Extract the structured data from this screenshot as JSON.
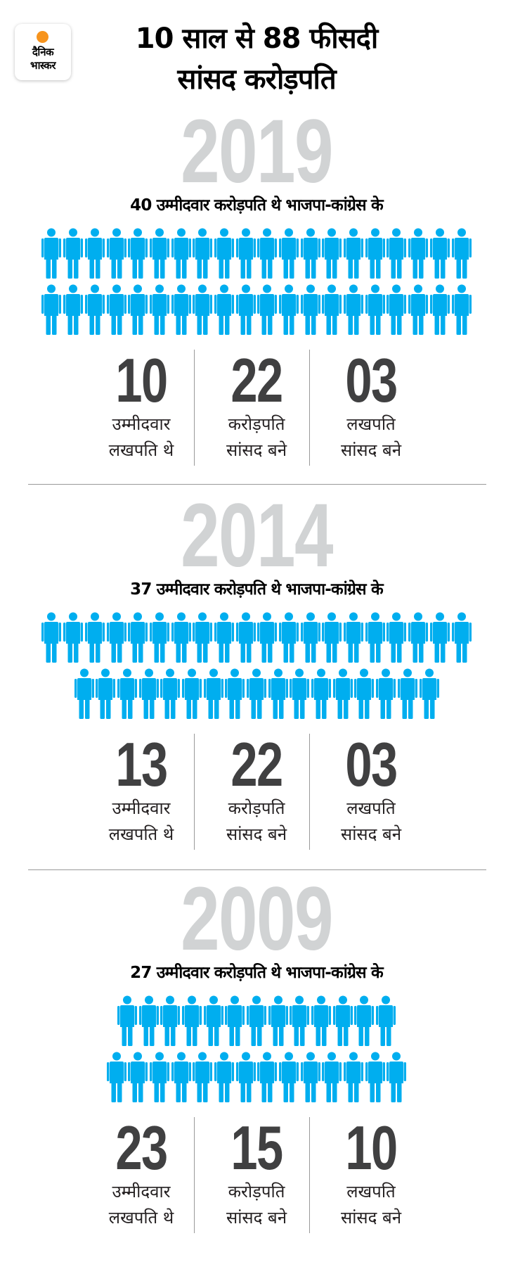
{
  "logo": {
    "line1": "दैनिक",
    "line2": "भास्कर",
    "sun_color": "#f7941d"
  },
  "title": {
    "line1": "10 साल से 88 फीसदी",
    "line2": "सांसद करोड़पति"
  },
  "colors": {
    "figure": "#00aeef",
    "year": "#d1d3d4",
    "number": "#404041"
  },
  "sections": [
    {
      "year": "2019",
      "subtitle": "40 उम्मीदवार करोड़पति थे भाजपा-कांग्रेस के",
      "figure_rows": [
        20,
        20
      ],
      "stats": [
        {
          "value": "10",
          "label1": "उम्मीदवार",
          "label2": "लखपति थे"
        },
        {
          "value": "22",
          "label1": "करोड़पति",
          "label2": "सांसद बने"
        },
        {
          "value": "03",
          "label1": "लखपति",
          "label2": "सांसद बने"
        }
      ]
    },
    {
      "year": "2014",
      "subtitle": "37 उम्मीदवार करोड़पति थे भाजपा-कांग्रेस के",
      "figure_rows": [
        20,
        17
      ],
      "stats": [
        {
          "value": "13",
          "label1": "उम्मीदवार",
          "label2": "लखपति थे"
        },
        {
          "value": "22",
          "label1": "करोड़पति",
          "label2": "सांसद बने"
        },
        {
          "value": "03",
          "label1": "लखपति",
          "label2": "सांसद बने"
        }
      ]
    },
    {
      "year": "2009",
      "subtitle": "27 उम्मीदवार करोड़पति थे भाजपा-कांग्रेस के",
      "figure_rows": [
        13,
        14
      ],
      "stats": [
        {
          "value": "23",
          "label1": "उम्मीदवार",
          "label2": "लखपति थे"
        },
        {
          "value": "15",
          "label1": "करोड़पति",
          "label2": "सांसद बने"
        },
        {
          "value": "10",
          "label1": "लखपति",
          "label2": "सांसद बने"
        }
      ]
    }
  ]
}
